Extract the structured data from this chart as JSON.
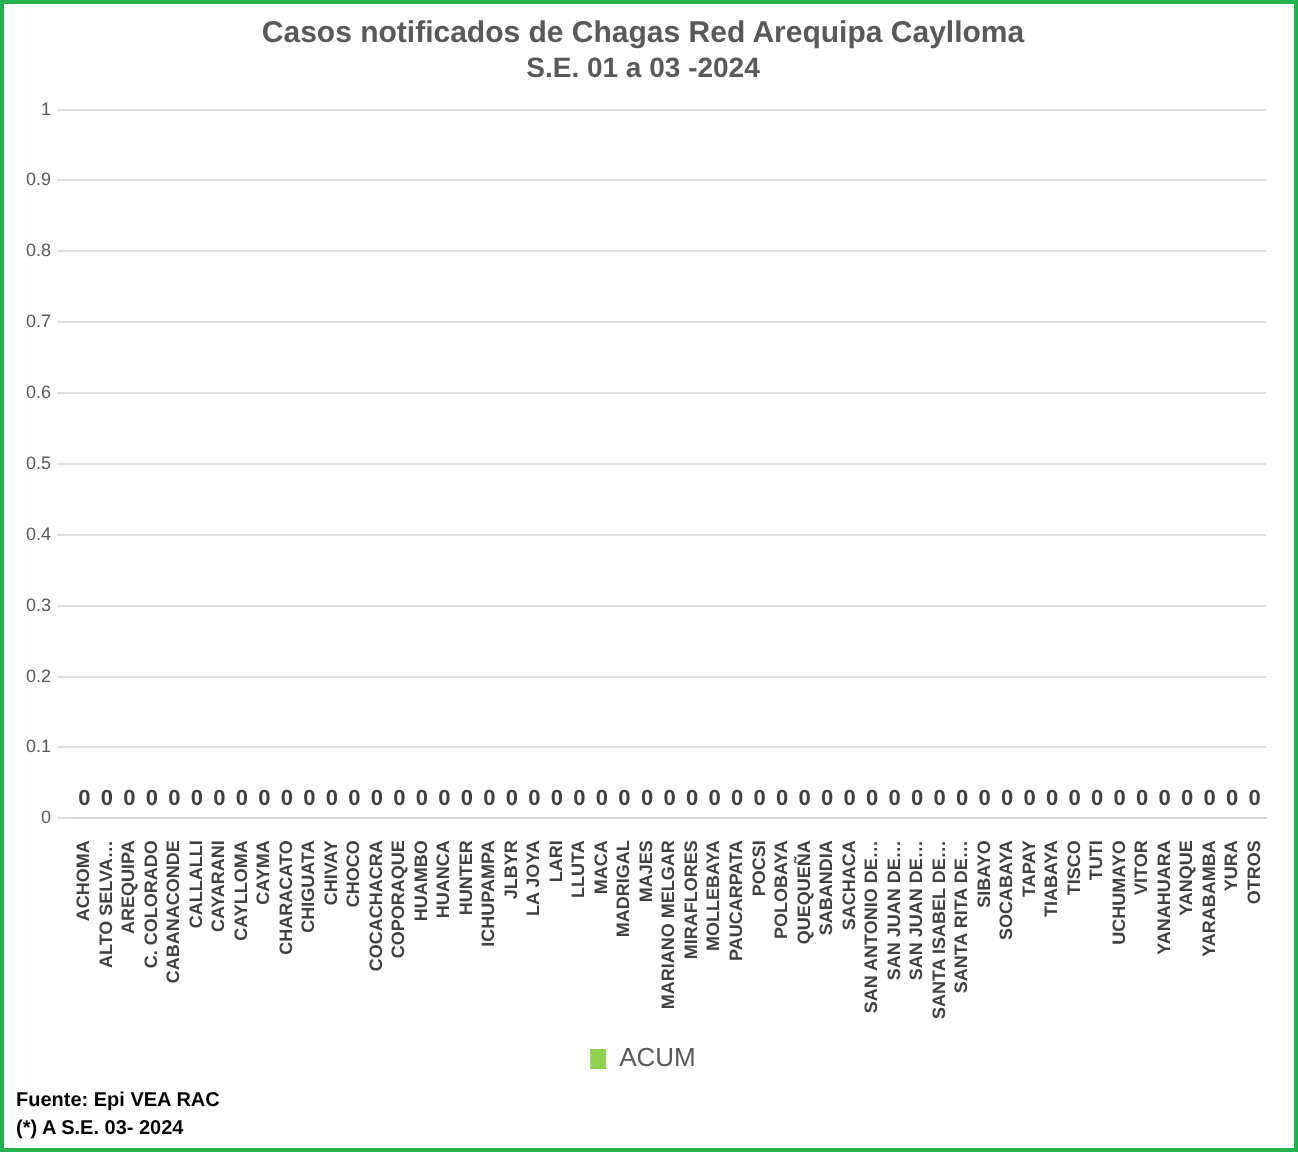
{
  "chart_data": {
    "type": "bar",
    "title": "Casos notificados de Chagas Red Arequipa Caylloma",
    "subtitle": "S.E. 01 a 03 -2024",
    "categories": [
      "ACHOMA",
      "ALTO SELVA…",
      "AREQUIPA",
      "C. COLORADO",
      "CABANACONDE",
      "CALLALLI",
      "CAYARANI",
      "CAYLLOMA",
      "CAYMA",
      "CHARACATO",
      "CHIGUATA",
      "CHIVAY",
      "CHOCO",
      "COCACHACRA",
      "COPORAQUE",
      "HUAMBO",
      "HUANCA",
      "HUNTER",
      "ICHUPAMPA",
      "JLBYR",
      "LA JOYA",
      "LARI",
      "LLUTA",
      "MACA",
      "MADRIGAL",
      "MAJES",
      "MARIANO MELGAR",
      "MIRAFLORES",
      "MOLLEBAYA",
      "PAUCARPATA",
      "POCSI",
      "POLOBAYA",
      "QUEQUEÑA",
      "SABANDIA",
      "SACHACA",
      "SAN ANTONIO DE…",
      "SAN JUAN DE…",
      "SAN JUAN DE…",
      "SANTA ISABEL DE…",
      "SANTA RITA DE…",
      "SIBAYO",
      "SOCABAYA",
      "TAPAY",
      "TIABAYA",
      "TISCO",
      "TUTI",
      "UCHUMAYO",
      "VITOR",
      "YANAHUARA",
      "YANQUE",
      "YARABAMBA",
      "YURA",
      "OTROS"
    ],
    "series": [
      {
        "name": "ACUM",
        "color": "#92d050",
        "values": [
          0,
          0,
          0,
          0,
          0,
          0,
          0,
          0,
          0,
          0,
          0,
          0,
          0,
          0,
          0,
          0,
          0,
          0,
          0,
          0,
          0,
          0,
          0,
          0,
          0,
          0,
          0,
          0,
          0,
          0,
          0,
          0,
          0,
          0,
          0,
          0,
          0,
          0,
          0,
          0,
          0,
          0,
          0,
          0,
          0,
          0,
          0,
          0,
          0,
          0,
          0,
          0,
          0
        ]
      }
    ],
    "ylim": [
      0,
      1
    ],
    "yticks": [
      0,
      0.1,
      0.2,
      0.3,
      0.4,
      0.5,
      0.6,
      0.7,
      0.8,
      0.9,
      1
    ],
    "grid": "y",
    "legend": "bottom",
    "data_labels": true,
    "annotations": [
      "Fuente: Epi VEA RAC",
      "(*) A S.E. 03- 2024"
    ]
  }
}
